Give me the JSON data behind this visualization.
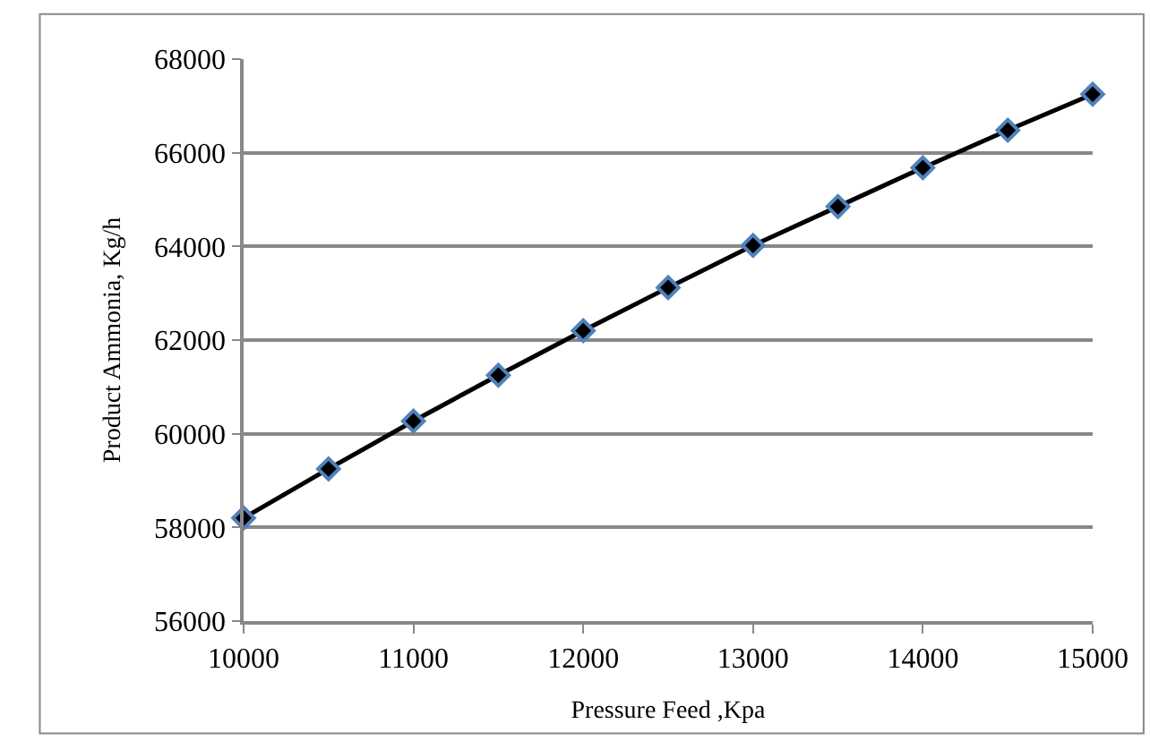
{
  "chart_data": {
    "type": "line",
    "xlabel": "Pressure Feed ,Kpa",
    "ylabel": "Product Ammonia, Kg/h",
    "x": [
      10000,
      10500,
      11000,
      11500,
      12000,
      12500,
      13000,
      13500,
      14000,
      14500,
      15000
    ],
    "series": [
      {
        "color": "#000000",
        "values": [
          58200,
          59250,
          60270,
          61250,
          62200,
          63120,
          64020,
          64850,
          65680,
          66480,
          67250
        ]
      }
    ],
    "xlim": [
      10000,
      15000
    ],
    "xticks": [
      10000,
      11000,
      12000,
      13000,
      14000,
      15000
    ],
    "ylim": [
      56000,
      68000
    ],
    "yticks": [
      56000,
      58000,
      60000,
      62000,
      64000,
      66000,
      68000
    ],
    "grid": "y",
    "marker": "diamond",
    "line_style": "solid",
    "legend": false
  }
}
